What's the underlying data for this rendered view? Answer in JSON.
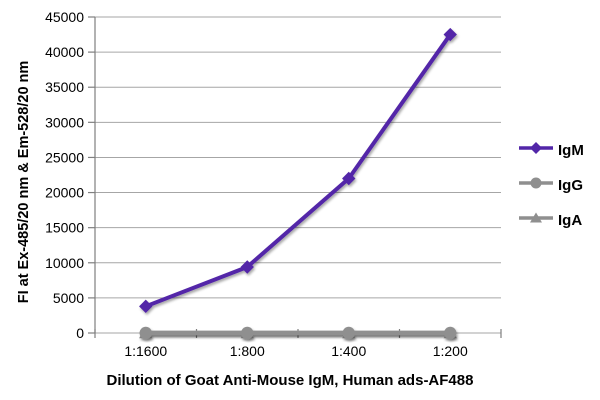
{
  "figure": {
    "background": "#ffffff"
  },
  "chart_data": {
    "type": "line",
    "title": "",
    "xlabel": "Dilution of Goat Anti-Mouse IgM, Human ads-AF488",
    "ylabel": "FI at Ex-485/20 nm & Em-528/20 nm",
    "categories": [
      "1:1600",
      "1:800",
      "1:400",
      "1:200"
    ],
    "series": [
      {
        "name": "IgM",
        "values": [
          3800,
          9400,
          22000,
          42500
        ],
        "color": "#5226a8",
        "marker": "diamond",
        "line_width": 4
      },
      {
        "name": "IgG",
        "values": [
          0,
          0,
          0,
          0
        ],
        "color": "#8f8f8f",
        "marker": "circle",
        "line_width": 4.5
      },
      {
        "name": "IgA",
        "values": [
          0,
          0,
          0,
          0
        ],
        "color": "#8f8f8f",
        "marker": "triangle",
        "line_width": 4.5
      }
    ],
    "ylim": [
      0,
      45000
    ],
    "yticks": [
      0,
      5000,
      10000,
      15000,
      20000,
      25000,
      30000,
      35000,
      40000,
      45000
    ],
    "grid": true,
    "legend_position": "right"
  },
  "styles": {
    "gridline_color": "#a6a6a6",
    "axis_color": "#7f7f7f",
    "text_color": "#000000"
  }
}
